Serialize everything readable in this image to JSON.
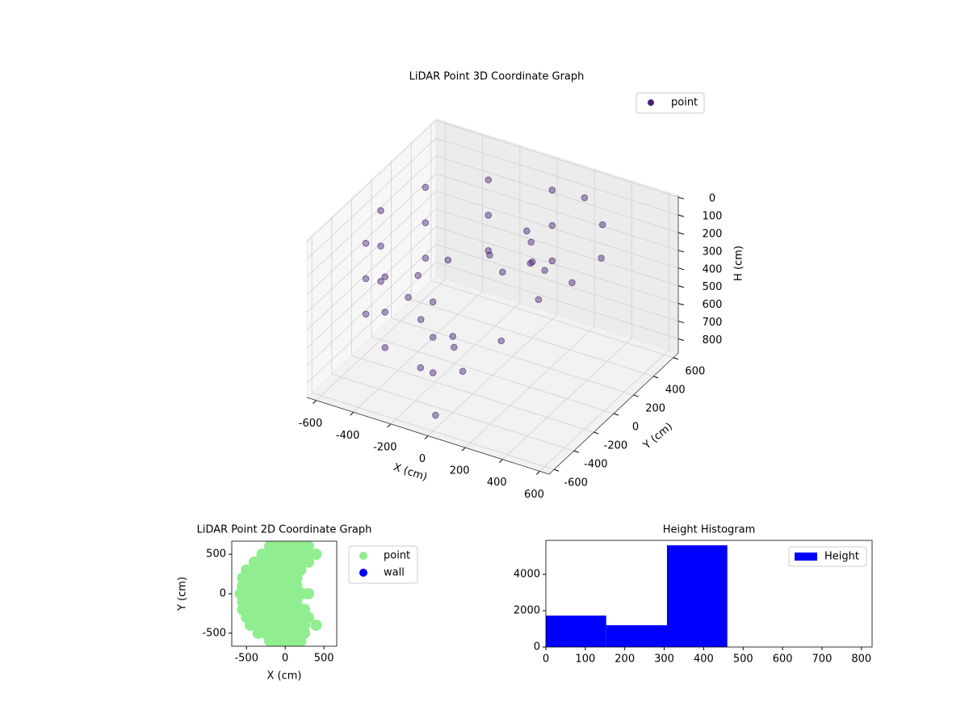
{
  "chart_data": [
    {
      "type": "scatter3d",
      "title": "LiDAR Point 3D Coordinate Graph",
      "xlabel": "X (cm)",
      "ylabel": "Y (cm)",
      "zlabel": "H (cm)",
      "xlim": [
        -650,
        650
      ],
      "ylim": [
        -650,
        650
      ],
      "zlim": [
        -10,
        880
      ],
      "z_inverted": true,
      "xticks": [
        -600,
        -400,
        -200,
        0,
        200,
        400,
        600
      ],
      "yticks": [
        -600,
        -400,
        -200,
        0,
        200,
        400,
        600
      ],
      "zticks": [
        0,
        100,
        200,
        300,
        400,
        500,
        600,
        700,
        800
      ],
      "grid": true,
      "legend": "upper right",
      "series": [
        {
          "name": "point",
          "color": "#482173",
          "x": [
            0,
            -300,
            -520,
            -600,
            -520,
            -300,
            0,
            0,
            -300,
            -520,
            -600,
            -520,
            -300,
            0,
            0,
            -300,
            -520,
            -600,
            -520,
            -300,
            0,
            0,
            -200,
            -346,
            -400,
            -346,
            -200,
            0,
            200,
            350,
            450,
            400,
            300,
            100,
            150,
            50,
            200,
            0,
            -100,
            0,
            100,
            -200,
            -50
          ],
          "y": [
            600,
            520,
            300,
            0,
            -300,
            -520,
            -600,
            600,
            520,
            300,
            0,
            -300,
            -520,
            -600,
            600,
            520,
            300,
            0,
            -300,
            -520,
            -600,
            400,
            346,
            200,
            0,
            -200,
            -346,
            -400,
            550,
            450,
            250,
            50,
            -100,
            200,
            100,
            250,
            150,
            100,
            -200,
            -300,
            -100,
            -350,
            -480
          ],
          "h": [
            150,
            150,
            150,
            150,
            150,
            150,
            150,
            350,
            350,
            350,
            350,
            350,
            350,
            350,
            550,
            550,
            550,
            550,
            550,
            550,
            550,
            450,
            450,
            450,
            450,
            450,
            450,
            450,
            100,
            150,
            200,
            250,
            300,
            200,
            250,
            180,
            300,
            350,
            650,
            700,
            600,
            720,
            870
          ]
        }
      ]
    },
    {
      "type": "scatter",
      "title": "LiDAR Point 2D Coordinate Graph",
      "xlabel": "X (cm)",
      "ylabel": "Y (cm)",
      "xlim": [
        -690,
        665
      ],
      "ylim": [
        -665,
        665
      ],
      "xticks": [
        -500,
        0,
        500
      ],
      "yticks": [
        -500,
        0,
        500
      ],
      "legend": "outside right",
      "series": [
        {
          "name": "point",
          "color": "#90ee90",
          "x": [
            -200,
            -100,
            0,
            100,
            200,
            300,
            -300,
            -200,
            -100,
            0,
            100,
            200,
            300,
            400,
            -400,
            -300,
            -200,
            -100,
            0,
            100,
            200,
            300,
            -500,
            -400,
            -300,
            -200,
            -100,
            0,
            100,
            200,
            -550,
            -450,
            -350,
            -250,
            -150,
            -50,
            50,
            150,
            -550,
            -450,
            -350,
            -250,
            -150,
            -50,
            50,
            150,
            -580,
            -480,
            -380,
            -280,
            -180,
            -80,
            20,
            120,
            220,
            300,
            -550,
            -450,
            -350,
            -250,
            -150,
            -50,
            50,
            150,
            -550,
            -450,
            -350,
            -250,
            -150,
            -50,
            50,
            150,
            250,
            -500,
            -400,
            -300,
            -200,
            -100,
            0,
            100,
            200,
            300,
            -450,
            -350,
            -250,
            -150,
            -50,
            50,
            150,
            250,
            400,
            -350,
            -250,
            -150,
            -50,
            50,
            150,
            250,
            -200,
            -100,
            0,
            100,
            200
          ],
          "y": [
            600,
            600,
            600,
            600,
            600,
            600,
            500,
            500,
            500,
            500,
            500,
            500,
            500,
            500,
            400,
            400,
            400,
            400,
            400,
            400,
            400,
            400,
            300,
            300,
            300,
            300,
            300,
            300,
            300,
            300,
            200,
            200,
            200,
            200,
            200,
            200,
            200,
            200,
            100,
            100,
            100,
            100,
            100,
            100,
            100,
            100,
            0,
            0,
            0,
            0,
            0,
            0,
            0,
            0,
            0,
            0,
            -100,
            -100,
            -100,
            -100,
            -100,
            -100,
            -100,
            -100,
            -200,
            -200,
            -200,
            -200,
            -200,
            -200,
            -200,
            -200,
            -200,
            -300,
            -300,
            -300,
            -300,
            -300,
            -300,
            -300,
            -300,
            -300,
            -400,
            -400,
            -400,
            -400,
            -400,
            -400,
            -400,
            -400,
            -400,
            -500,
            -500,
            -500,
            -500,
            -500,
            -500,
            -500,
            -600,
            -600,
            -600,
            -600,
            -600
          ]
        },
        {
          "name": "wall",
          "color": "#0000ff",
          "x": [],
          "y": []
        }
      ]
    },
    {
      "type": "histogram",
      "title": "Height Histogram",
      "name": "Height",
      "color": "#0000ff",
      "bins": [
        0,
        153,
        307,
        460,
        613,
        767
      ],
      "values": [
        1730,
        1200,
        5600,
        0,
        0
      ],
      "xlim": [
        0,
        827
      ],
      "ylim": [
        0,
        5870
      ],
      "xticks": [
        0,
        100,
        200,
        300,
        400,
        500,
        600,
        700,
        800
      ],
      "yticks": [
        0,
        2000,
        4000
      ],
      "legend": "upper right"
    }
  ]
}
